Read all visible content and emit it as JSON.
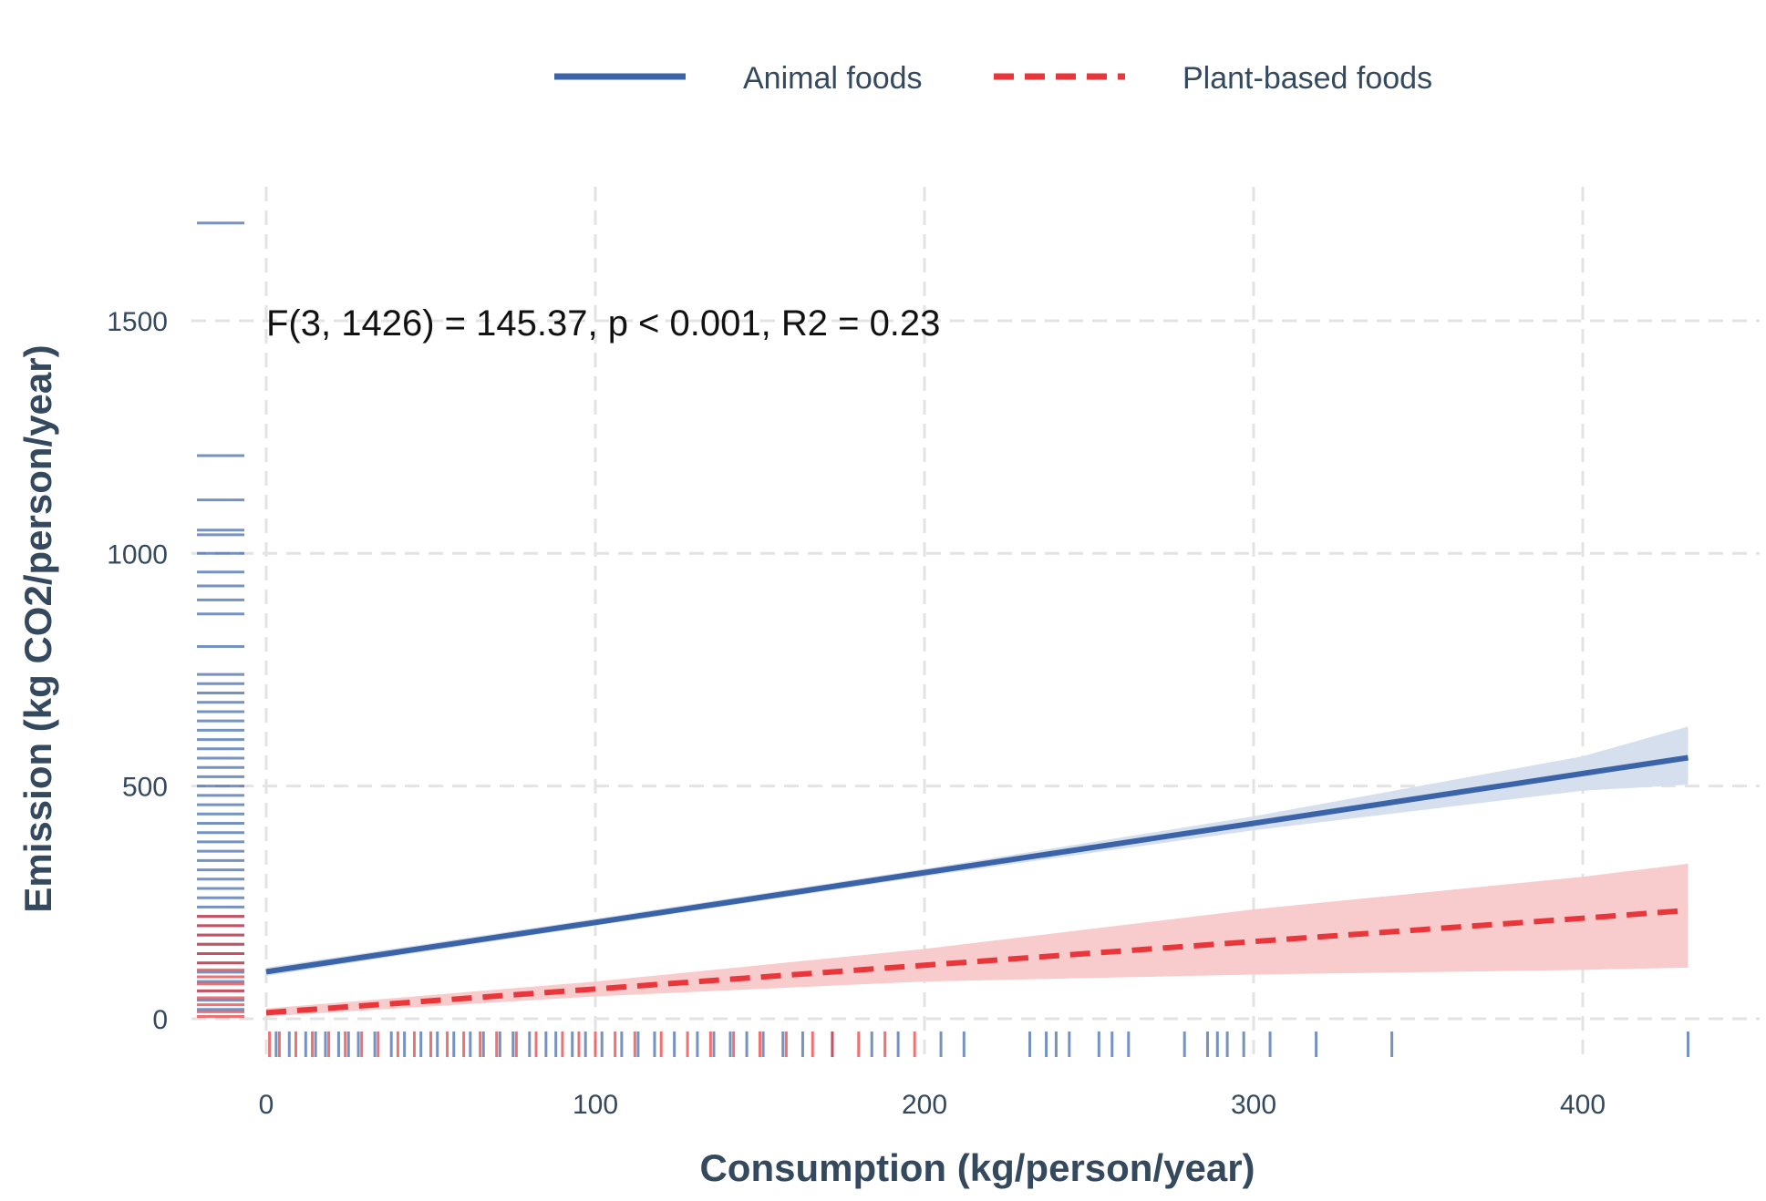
{
  "chart_data": {
    "type": "line",
    "title": "",
    "xlabel": "Consumption (kg/person/year)",
    "ylabel": "Emission (kg CO2/person/year)",
    "xlim": [
      0,
      450
    ],
    "ylim": [
      -65,
      1750
    ],
    "xticks": [
      0,
      100,
      200,
      300,
      400
    ],
    "yticks": [
      0,
      500,
      1000,
      1500
    ],
    "grid": true,
    "legend_position": "top",
    "annotation": "F(3, 1426) = 145.37, p < 0.001, R2 = 0.23",
    "series": [
      {
        "name": "Animal foods",
        "color": "#3b64a8",
        "line_style": "solid",
        "x": [
          0,
          100,
          200,
          300,
          400,
          432
        ],
        "y": [
          101,
          207,
          314,
          420,
          527,
          561
        ],
        "ci_lower": [
          92,
          200,
          306,
          405,
          490,
          503
        ],
        "ci_upper": [
          110,
          215,
          322,
          435,
          564,
          628
        ],
        "rug_x": [
          3,
          7,
          12,
          15,
          18,
          22,
          25,
          28,
          33,
          38,
          42,
          47,
          52,
          57,
          62,
          66,
          71,
          75,
          80,
          85,
          88,
          93,
          97,
          102,
          108,
          113,
          118,
          124,
          131,
          136,
          141,
          146,
          151,
          157,
          163,
          172,
          184,
          192,
          205,
          212,
          232,
          237,
          240,
          244,
          253,
          257,
          262,
          279,
          286,
          289,
          292,
          297,
          305,
          319,
          342,
          432
        ],
        "rug_y": [
          20,
          40,
          60,
          80,
          100,
          120,
          140,
          160,
          180,
          200,
          220,
          240,
          260,
          280,
          300,
          320,
          340,
          360,
          380,
          400,
          420,
          440,
          460,
          480,
          500,
          520,
          540,
          560,
          580,
          600,
          620,
          640,
          660,
          680,
          700,
          720,
          740,
          800,
          870,
          900,
          930,
          960,
          1000,
          1040,
          1050,
          1115,
          1210,
          1710
        ]
      },
      {
        "name": "Plant-based foods",
        "color": "#e8363a",
        "line_style": "dashed",
        "x": [
          0,
          100,
          200,
          300,
          400,
          432
        ],
        "y": [
          13,
          64,
          115,
          166,
          216,
          233
        ],
        "ci_lower": [
          5,
          48,
          80,
          95,
          105,
          110
        ],
        "ci_upper": [
          22,
          80,
          150,
          235,
          305,
          333
        ],
        "rug_x": [
          1,
          4,
          9,
          14,
          19,
          24,
          29,
          34,
          40,
          45,
          50,
          55,
          60,
          65,
          70,
          76,
          82,
          90,
          95,
          100,
          106,
          112,
          120,
          128,
          135,
          142,
          150,
          158,
          166,
          172,
          180,
          188,
          197
        ],
        "rug_y": [
          5,
          15,
          30,
          45,
          60,
          75,
          90,
          105,
          120,
          140,
          160,
          180,
          200,
          220
        ]
      }
    ]
  }
}
